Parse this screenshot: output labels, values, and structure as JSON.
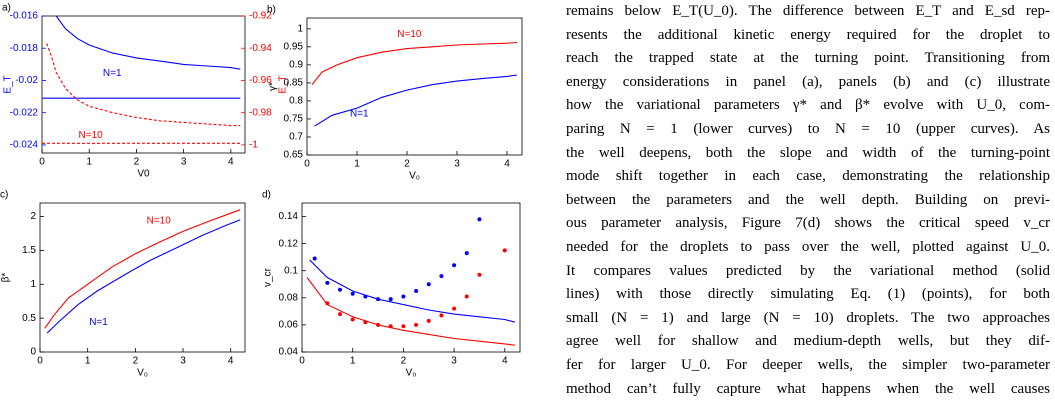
{
  "chart_data": [
    {
      "type": "line",
      "label": "a)",
      "xlabel": "V0",
      "ylabel": "E_T",
      "y2label": "E_T",
      "yaxis_color": "#0000ff",
      "y2axis_color": "#ff0000",
      "xlim": [
        0,
        4.3
      ],
      "xticks": [
        0,
        1,
        2,
        3,
        4
      ],
      "ylim": [
        -0.0245,
        -0.016
      ],
      "yticks": [
        -0.016,
        -0.018,
        -0.02,
        -0.022,
        -0.024
      ],
      "y2lim": [
        -1.005,
        -0.92
      ],
      "y2ticks": [
        -0.92,
        -0.94,
        -0.96,
        -0.98,
        -1
      ],
      "annotations": [
        {
          "text": "N=1",
          "color": "#0000ff"
        },
        {
          "text": "N=10",
          "color": "#ff0000"
        }
      ],
      "series": [
        {
          "color": "#0000ff",
          "x": [
            0.3,
            0.5,
            0.75,
            1,
            1.5,
            2,
            2.5,
            3,
            3.5,
            4,
            4.2
          ],
          "values": [
            -0.016,
            -0.0168,
            -0.0174,
            -0.0178,
            -0.0183,
            -0.0186,
            -0.0188,
            -0.019,
            -0.0191,
            -0.0192,
            -0.0193
          ]
        },
        {
          "color": "#0000ff",
          "x": [
            0,
            4.2
          ],
          "values": [
            -0.0211,
            -0.0211
          ]
        },
        {
          "color": "#ff0000",
          "axis": "y2",
          "dash": true,
          "x": [
            0.1,
            0.2,
            0.3,
            0.5,
            0.75,
            1,
            1.5,
            2,
            2.5,
            3,
            3.5,
            4,
            4.2
          ],
          "values": [
            -0.937,
            -0.945,
            -0.955,
            -0.965,
            -0.972,
            -0.976,
            -0.98,
            -0.983,
            -0.985,
            -0.986,
            -0.987,
            -0.988,
            -0.988
          ]
        },
        {
          "color": "#ff0000",
          "axis": "y2",
          "dash": true,
          "x": [
            0,
            4.2
          ],
          "values": [
            -0.999,
            -0.999
          ]
        }
      ]
    },
    {
      "type": "line",
      "label": "b)",
      "xlabel": "V₀",
      "ylabel": "γ*",
      "xlim": [
        0,
        4.3
      ],
      "xticks": [
        0,
        1,
        2,
        3,
        4
      ],
      "ylim": [
        0.65,
        1.03
      ],
      "yticks": [
        0.65,
        0.7,
        0.75,
        0.8,
        0.85,
        0.9,
        0.95,
        1
      ],
      "annotations": [
        {
          "text": "N=10",
          "color": "#ff0000"
        },
        {
          "text": "N=1",
          "color": "#0000ff"
        }
      ],
      "series": [
        {
          "color": "#ff0000",
          "x": [
            0.1,
            0.3,
            0.6,
            1,
            1.5,
            2,
            2.5,
            3,
            3.5,
            4,
            4.2
          ],
          "values": [
            0.845,
            0.88,
            0.9,
            0.92,
            0.935,
            0.945,
            0.95,
            0.955,
            0.958,
            0.96,
            0.962
          ]
        },
        {
          "color": "#0000ff",
          "x": [
            0.15,
            0.5,
            1,
            1.5,
            2,
            2.5,
            3,
            3.5,
            4,
            4.2
          ],
          "values": [
            0.73,
            0.76,
            0.78,
            0.81,
            0.83,
            0.845,
            0.855,
            0.862,
            0.868,
            0.872
          ]
        }
      ]
    },
    {
      "type": "line",
      "label": "c)",
      "xlabel": "V₀",
      "ylabel": "β*",
      "xlim": [
        0,
        4.3
      ],
      "xticks": [
        0,
        1,
        2,
        3,
        4
      ],
      "ylim": [
        0,
        2.2
      ],
      "yticks": [
        0,
        0.5,
        1,
        1.5,
        2
      ],
      "annotations": [
        {
          "text": "N=10",
          "color": "#ff0000"
        },
        {
          "text": "N=1",
          "color": "#0000ff"
        }
      ],
      "series": [
        {
          "color": "#ff0000",
          "x": [
            0.1,
            0.3,
            0.6,
            1,
            1.5,
            2,
            2.5,
            3,
            3.5,
            4,
            4.2
          ],
          "values": [
            0.35,
            0.55,
            0.8,
            1.0,
            1.25,
            1.45,
            1.62,
            1.78,
            1.92,
            2.05,
            2.1
          ]
        },
        {
          "color": "#0000ff",
          "x": [
            0.15,
            0.4,
            0.8,
            1.2,
            1.8,
            2.3,
            2.9,
            3.4,
            3.9,
            4.2
          ],
          "values": [
            0.28,
            0.45,
            0.7,
            0.9,
            1.15,
            1.35,
            1.55,
            1.72,
            1.87,
            1.95
          ]
        }
      ]
    },
    {
      "type": "line",
      "label": "d)",
      "xlabel": "V₀",
      "ylabel": "v_cr",
      "xlim": [
        0,
        4.3
      ],
      "xticks": [
        0,
        1,
        2,
        3,
        4
      ],
      "ylim": [
        0.04,
        0.15
      ],
      "yticks": [
        0.04,
        0.06,
        0.08,
        0.1,
        0.12,
        0.14
      ],
      "annotations": [],
      "series": [
        {
          "color": "#0000ff",
          "x": [
            0.15,
            0.5,
            1,
            1.5,
            2,
            2.5,
            3,
            3.5,
            4,
            4.2
          ],
          "values": [
            0.108,
            0.095,
            0.085,
            0.079,
            0.075,
            0.071,
            0.068,
            0.066,
            0.064,
            0.062
          ]
        },
        {
          "color": "#ff0000",
          "x": [
            0.1,
            0.5,
            1,
            1.5,
            2,
            2.5,
            3,
            3.5,
            4,
            4.2
          ],
          "values": [
            0.095,
            0.075,
            0.066,
            0.06,
            0.056,
            0.053,
            0.05,
            0.048,
            0.046,
            0.045
          ]
        },
        {
          "color": "#0000ff",
          "markers": true,
          "x": [
            0.25,
            0.5,
            0.75,
            1,
            1.25,
            1.5,
            1.75,
            2,
            2.25,
            2.5,
            2.75,
            3,
            3.25,
            3.5
          ],
          "values": [
            0.109,
            0.091,
            0.086,
            0.083,
            0.081,
            0.079,
            0.079,
            0.081,
            0.085,
            0.09,
            0.096,
            0.104,
            0.113,
            0.138
          ]
        },
        {
          "color": "#ff0000",
          "markers": true,
          "x": [
            0.5,
            0.75,
            1,
            1.25,
            1.5,
            1.75,
            2,
            2.25,
            2.5,
            2.75,
            3,
            3.25,
            3.5,
            4
          ],
          "values": [
            0.076,
            0.068,
            0.064,
            0.062,
            0.06,
            0.059,
            0.059,
            0.06,
            0.063,
            0.067,
            0.072,
            0.081,
            0.097,
            0.115
          ]
        }
      ]
    }
  ],
  "body_text": [
    "remains below E_T(U_0). The difference between E_T and E_sd rep-",
    "resents the additional kinetic energy required for the droplet to",
    "reach the trapped state at the turning point. Transitioning from",
    "energy considerations in panel (a), panels (b) and (c) illustrate",
    "how the variational parameters γ* and β* evolve with U_0, com-",
    "paring N = 1 (lower curves) to N = 10 (upper curves). As",
    "the well deepens, both the slope and width of the turning-point",
    "mode shift together in each case, demonstrating the relationship",
    "between the parameters and the well depth. Building on previ-",
    "ous parameter analysis, Figure 7(d) shows the critical speed v_cr",
    "needed for the droplets to pass over the well, plotted against U_0.",
    "It compares values predicted by the variational method (solid",
    "lines) with those directly simulating Eq. (1) (points), for both",
    "small (N = 1) and large (N = 10) droplets. The two approaches",
    "agree well for shallow and medium-depth wells, but they dif-",
    "fer for larger U_0. For deeper wells, the simpler two-parameter",
    "method can’t fully capture what happens when the well causes"
  ]
}
